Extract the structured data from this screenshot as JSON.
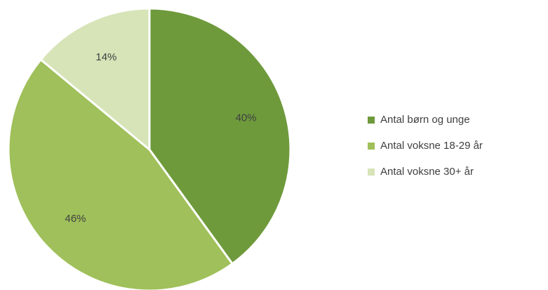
{
  "chart_data": {
    "type": "pie",
    "title": "",
    "slices": [
      {
        "label": "Antal børn og unge",
        "value": 40,
        "display": "40%",
        "color": "#6e9a3c"
      },
      {
        "label": "Antal voksne 18-29 år",
        "value": 46,
        "display": "46%",
        "color": "#9fc05a"
      },
      {
        "label": "Antal voksne 30+ år",
        "value": 14,
        "display": "14%",
        "color": "#d6e4b8"
      }
    ],
    "legend_position": "right",
    "start_angle": "12 o'clock",
    "direction": "clockwise"
  }
}
